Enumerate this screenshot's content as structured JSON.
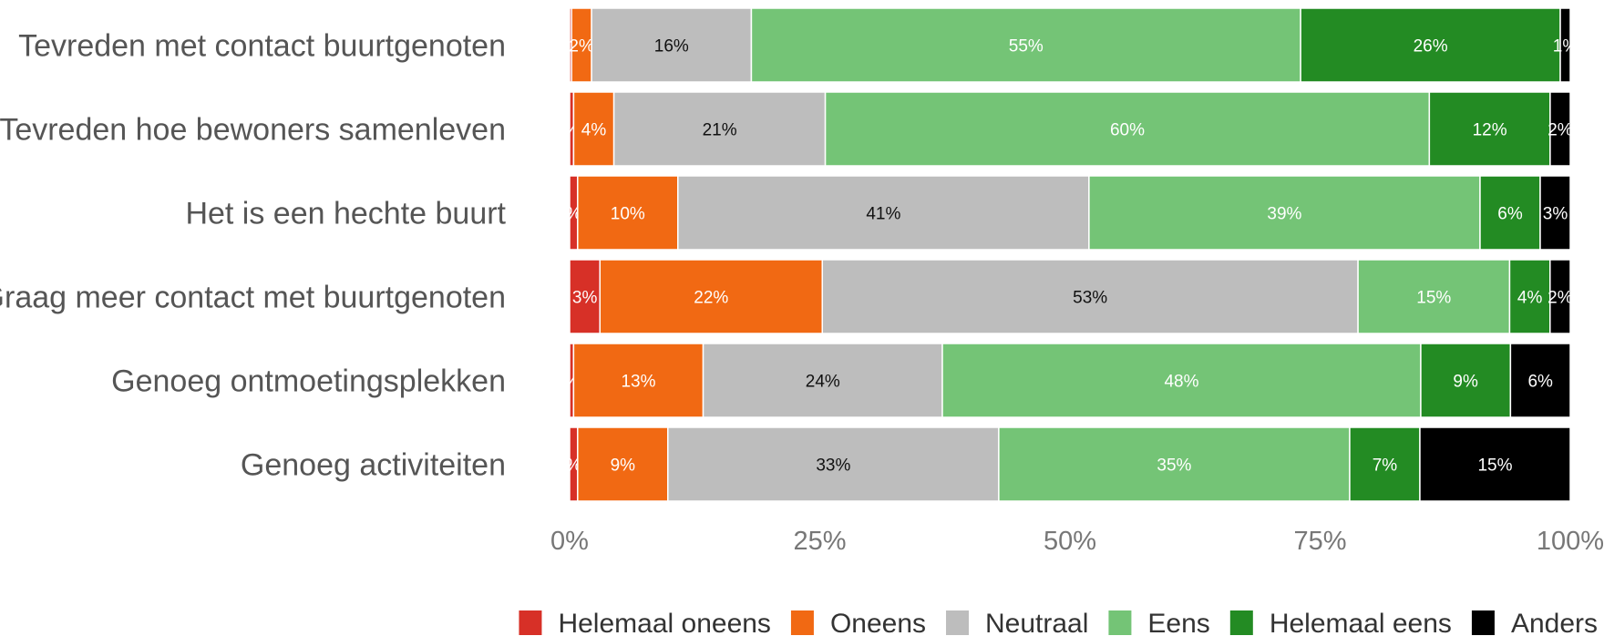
{
  "chart_data": {
    "type": "bar",
    "orientation": "horizontal",
    "stacked": "percent",
    "categories": [
      "Tevreden met contact buurtgenoten",
      "Tevreden hoe bewoners samenleven",
      "Het is een hechte buurt",
      "Graag meer contact met buurtgenoten",
      "Genoeg ontmoetingsplekken",
      "Genoeg activiteiten"
    ],
    "series": [
      {
        "name": "Helemaal oneens",
        "color": "#d73027",
        "label_color": "#ffffff",
        "values": [
          0.2,
          0.4,
          0.8,
          3,
          0.4,
          0.8
        ],
        "labels": [
          "",
          "%",
          "%",
          "3%",
          "%",
          "%"
        ]
      },
      {
        "name": "Oneens",
        "color": "#f16913",
        "label_color": "#ffffff",
        "values": [
          2,
          4,
          10,
          22,
          13,
          9
        ],
        "labels": [
          "2%",
          "4%",
          "10%",
          "22%",
          "13%",
          "9%"
        ]
      },
      {
        "name": "Neutraal",
        "color": "#bdbdbd",
        "label_color": "#111111",
        "values": [
          16,
          21,
          41,
          53,
          24,
          33
        ],
        "labels": [
          "16%",
          "21%",
          "41%",
          "53%",
          "24%",
          "33%"
        ]
      },
      {
        "name": "Eens",
        "color": "#74c476",
        "label_color": "#ffffff",
        "values": [
          55,
          60,
          39,
          15,
          48,
          35
        ],
        "labels": [
          "55%",
          "60%",
          "39%",
          "15%",
          "48%",
          "35%"
        ]
      },
      {
        "name": "Helemaal eens",
        "color": "#238b23",
        "label_color": "#ffffff",
        "values": [
          26,
          12,
          6,
          4,
          9,
          7
        ],
        "labels": [
          "26%",
          "12%",
          "6%",
          "4%",
          "9%",
          "7%"
        ]
      },
      {
        "name": "Anders",
        "color": "#000000",
        "label_color": "#ffffff",
        "values": [
          1,
          2,
          3,
          2,
          6,
          15
        ],
        "labels": [
          "1%",
          "2%",
          "3%",
          "2%",
          "6%",
          "15%"
        ]
      }
    ],
    "x_ticks": [
      "0%",
      "25%",
      "50%",
      "75%",
      "100%"
    ],
    "xlim": [
      0,
      100
    ],
    "grid": false,
    "legend_position": "bottom"
  }
}
